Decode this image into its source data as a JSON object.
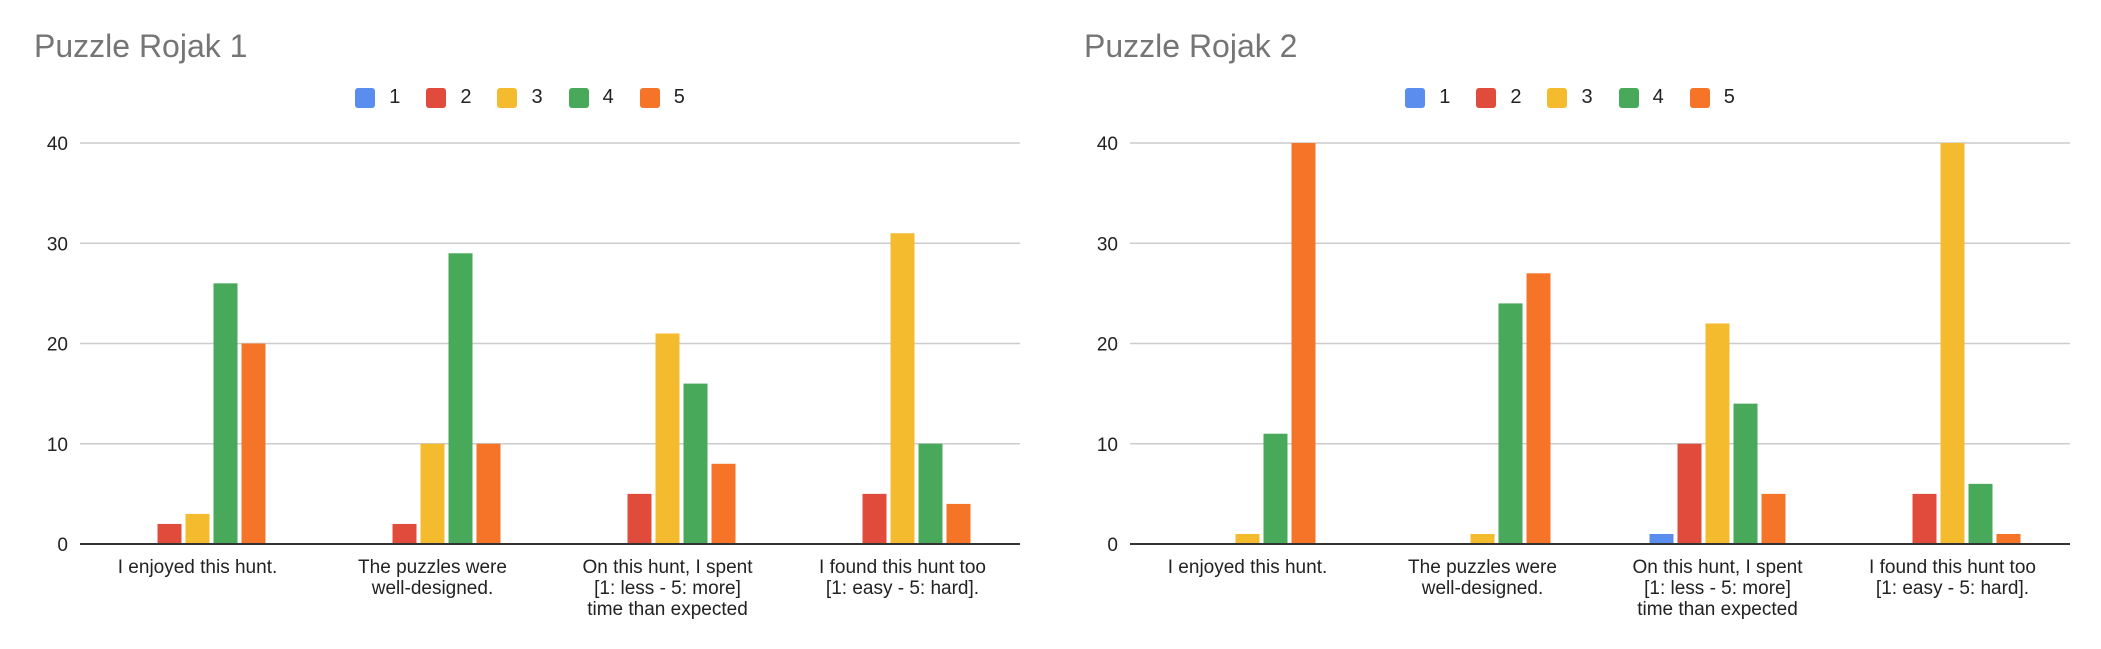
{
  "colors": {
    "s1": "#5b8def",
    "s2": "#e04b3c",
    "s3": "#f5bb2f",
    "s4": "#49a95a",
    "s5": "#f57427",
    "grid": "#cccccc",
    "axis": "#333333"
  },
  "chart_data": [
    {
      "type": "bar",
      "title": "Puzzle Rojak 1",
      "categories": [
        [
          "I enjoyed this hunt."
        ],
        [
          "The puzzles were",
          "well-designed."
        ],
        [
          "On this hunt, I spent",
          "[1: less - 5: more]",
          "time than expected"
        ],
        [
          "I found this hunt too",
          "[1: easy - 5: hard]."
        ]
      ],
      "series": [
        {
          "name": "1",
          "values": [
            0,
            0,
            0,
            0
          ]
        },
        {
          "name": "2",
          "values": [
            2,
            2,
            5,
            5
          ]
        },
        {
          "name": "3",
          "values": [
            3,
            10,
            21,
            31
          ]
        },
        {
          "name": "4",
          "values": [
            26,
            29,
            16,
            10
          ]
        },
        {
          "name": "5",
          "values": [
            20,
            10,
            8,
            4
          ]
        }
      ],
      "ylim": [
        0,
        40
      ],
      "yticks": [
        "0",
        "10",
        "20",
        "30",
        "40"
      ],
      "legend": "top",
      "grid": true
    },
    {
      "type": "bar",
      "title": "Puzzle Rojak 2",
      "categories": [
        [
          "I enjoyed this hunt."
        ],
        [
          "The puzzles were",
          "well-designed."
        ],
        [
          "On this hunt, I spent",
          "[1: less - 5: more]",
          "time than expected"
        ],
        [
          "I found this hunt too",
          "[1: easy - 5: hard]."
        ]
      ],
      "series": [
        {
          "name": "1",
          "values": [
            0,
            0,
            1,
            0
          ]
        },
        {
          "name": "2",
          "values": [
            0,
            0,
            10,
            5
          ]
        },
        {
          "name": "3",
          "values": [
            1,
            1,
            22,
            40
          ]
        },
        {
          "name": "4",
          "values": [
            11,
            24,
            14,
            6
          ]
        },
        {
          "name": "5",
          "values": [
            40,
            27,
            5,
            1
          ]
        }
      ],
      "ylim": [
        0,
        40
      ],
      "yticks": [
        "0",
        "10",
        "20",
        "30",
        "40"
      ],
      "legend": "top",
      "grid": true
    }
  ]
}
